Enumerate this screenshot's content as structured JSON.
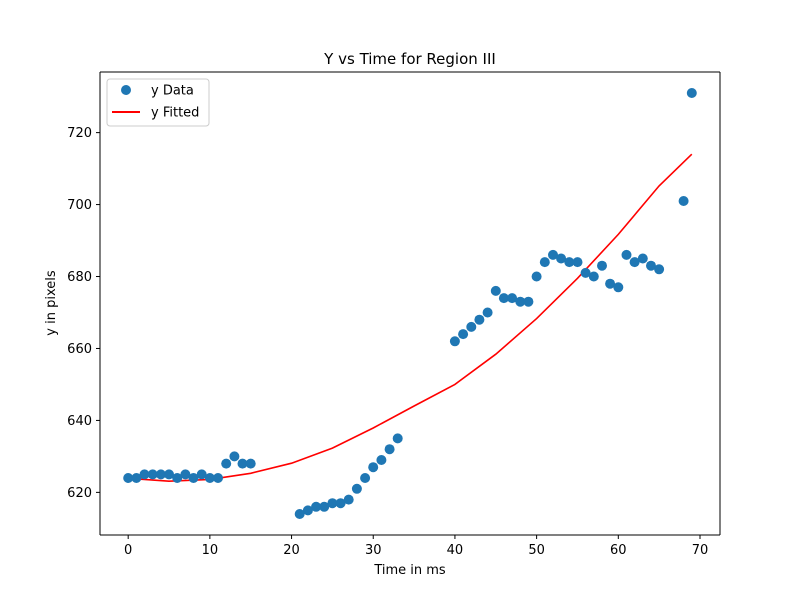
{
  "chart_data": {
    "type": "scatter",
    "title": "Y vs Time for Region III",
    "xlabel": "Time in ms",
    "ylabel": "y in pixels",
    "xlim": [
      -3.45,
      72.45
    ],
    "ylim": [
      608.15,
      736.85
    ],
    "xticks": [
      0,
      10,
      20,
      30,
      40,
      50,
      60,
      70
    ],
    "yticks": [
      620,
      640,
      660,
      680,
      700,
      720
    ],
    "grid": false,
    "legend_position": "top-left",
    "series": [
      {
        "name": "y Data",
        "kind": "scatter",
        "color": "#1f77b4",
        "x": [
          0,
          1,
          2,
          3,
          4,
          5,
          6,
          7,
          8,
          9,
          10,
          11,
          12,
          13,
          14,
          15,
          21,
          22,
          23,
          24,
          25,
          26,
          27,
          28,
          29,
          30,
          31,
          32,
          33,
          40,
          41,
          42,
          43,
          44,
          45,
          46,
          47,
          48,
          49,
          50,
          51,
          52,
          53,
          54,
          55,
          56,
          57,
          58,
          59,
          60,
          61,
          62,
          63,
          64,
          65,
          68,
          69
        ],
        "y": [
          624,
          624,
          625,
          625,
          625,
          625,
          624,
          625,
          624,
          625,
          624,
          624,
          628,
          630,
          628,
          628,
          614,
          615,
          616,
          616,
          617,
          617,
          618,
          621,
          624,
          627,
          629,
          632,
          635,
          662,
          664,
          666,
          668,
          670,
          676,
          674,
          674,
          673,
          673,
          680,
          684,
          686,
          685,
          684,
          684,
          681,
          680,
          683,
          678,
          677,
          686,
          684,
          685,
          683,
          682,
          701,
          731
        ]
      },
      {
        "name": "y Fitted",
        "kind": "line",
        "color": "#ff0000",
        "x": [
          0,
          5,
          10,
          15,
          20,
          25,
          30,
          35,
          40,
          45,
          50,
          55,
          60,
          65,
          69
        ],
        "y": [
          623.9,
          623.1,
          623.6,
          625.3,
          628.1,
          632.3,
          637.9,
          644.0,
          650.0,
          658.4,
          668.3,
          679.5,
          691.7,
          705.2,
          714.0
        ]
      }
    ]
  }
}
